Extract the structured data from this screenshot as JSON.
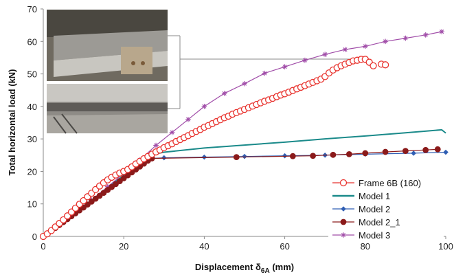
{
  "chart_data": {
    "type": "line",
    "xlabel": "Displacement δ",
    "xlabel_sub": "6A",
    "xlabel_unit": " (mm)",
    "ylabel": "Total horizontal load (kN)",
    "xlim": [
      0,
      100
    ],
    "ylim": [
      0,
      70
    ],
    "x_ticks": [
      "0",
      "20",
      "40",
      "60",
      "80",
      "100"
    ],
    "y_ticks": [
      "0",
      "10",
      "20",
      "30",
      "40",
      "50",
      "60",
      "70"
    ],
    "grid": false,
    "legend_position": "right",
    "inset": "photo",
    "series": [
      {
        "name": "Frame 6B (160)",
        "color": "#e8322d",
        "marker": "open-circle",
        "points": [
          [
            0,
            0
          ],
          [
            1,
            0.8
          ],
          [
            2,
            1.8
          ],
          [
            3,
            2.9
          ],
          [
            4,
            4
          ],
          [
            5,
            5.1
          ],
          [
            6,
            6.3
          ],
          [
            7,
            7.5
          ],
          [
            8,
            8.7
          ],
          [
            9,
            9.9
          ],
          [
            10,
            11
          ],
          [
            11,
            12.2
          ],
          [
            12,
            13.3
          ],
          [
            13,
            14.4
          ],
          [
            14,
            15.5
          ],
          [
            15,
            16.5
          ],
          [
            16,
            17.4
          ],
          [
            17,
            18.2
          ],
          [
            18,
            18.9
          ],
          [
            19,
            19.5
          ],
          [
            20,
            20
          ],
          [
            21,
            20.6
          ],
          [
            22,
            21.4
          ],
          [
            23,
            22.3
          ],
          [
            24,
            23.1
          ],
          [
            25,
            23.9
          ],
          [
            26,
            24.6
          ],
          [
            27,
            25.3
          ],
          [
            28,
            26
          ],
          [
            29,
            26.6
          ],
          [
            30,
            27.3
          ],
          [
            31,
            27.9
          ],
          [
            32,
            28.5
          ],
          [
            33,
            29.2
          ],
          [
            34,
            29.8
          ],
          [
            35,
            30.4
          ],
          [
            36,
            31
          ],
          [
            37,
            31.7
          ],
          [
            38,
            32.3
          ],
          [
            39,
            32.9
          ],
          [
            40,
            33.6
          ],
          [
            41,
            34.1
          ],
          [
            42,
            34.7
          ],
          [
            43,
            35.3
          ],
          [
            44,
            35.9
          ],
          [
            45,
            36.5
          ],
          [
            46,
            37
          ],
          [
            47,
            37.6
          ],
          [
            48,
            38.1
          ],
          [
            49,
            38.6
          ],
          [
            50,
            39.1
          ],
          [
            51,
            39.6
          ],
          [
            52,
            40.1
          ],
          [
            53,
            40.6
          ],
          [
            54,
            41.1
          ],
          [
            55,
            41.6
          ],
          [
            56,
            42
          ],
          [
            57,
            42.5
          ],
          [
            58,
            43
          ],
          [
            59,
            43.5
          ],
          [
            60,
            43.9
          ],
          [
            61,
            44.4
          ],
          [
            62,
            44.9
          ],
          [
            63,
            45.4
          ],
          [
            64,
            45.9
          ],
          [
            65,
            46.4
          ],
          [
            66,
            46.9
          ],
          [
            67,
            47.4
          ],
          [
            68,
            47.9
          ],
          [
            69,
            48.4
          ],
          [
            70,
            49.2
          ],
          [
            71,
            50.3
          ],
          [
            72,
            51.2
          ],
          [
            73,
            51.9
          ],
          [
            74,
            52.5
          ],
          [
            75,
            53
          ],
          [
            76,
            53.5
          ],
          [
            77,
            54
          ],
          [
            78,
            54.2
          ],
          [
            79,
            54.5
          ],
          [
            80,
            54.5
          ],
          [
            81,
            53.6
          ],
          [
            82,
            52.5
          ],
          [
            84,
            53
          ],
          [
            85,
            52.8
          ]
        ]
      },
      {
        "name": "Model 1",
        "color": "#1a8a8a",
        "marker": "none",
        "points": [
          [
            0,
            0
          ],
          [
            10,
            9.2
          ],
          [
            20,
            18.8
          ],
          [
            25,
            23.5
          ],
          [
            27,
            25.2
          ],
          [
            30,
            25.9
          ],
          [
            40,
            27.2
          ],
          [
            50,
            28.1
          ],
          [
            60,
            29
          ],
          [
            70,
            30
          ],
          [
            80,
            30.9
          ],
          [
            90,
            31.9
          ],
          [
            99,
            32.8
          ],
          [
            100,
            31.8
          ]
        ]
      },
      {
        "name": "Model 2",
        "color": "#2f5eb3",
        "marker": "diamond",
        "points": [
          [
            0,
            0
          ],
          [
            5,
            4.5
          ],
          [
            10,
            9
          ],
          [
            15,
            13.6
          ],
          [
            20,
            18.2
          ],
          [
            22,
            20
          ],
          [
            24,
            21.7
          ],
          [
            26,
            23.3
          ],
          [
            27,
            24
          ],
          [
            30,
            24.2
          ],
          [
            40,
            24.4
          ],
          [
            50,
            24.6
          ],
          [
            60,
            24.8
          ],
          [
            70,
            25
          ],
          [
            80,
            25.3
          ],
          [
            92,
            25.6
          ],
          [
            100,
            25.9
          ]
        ]
      },
      {
        "name": "Model 2_1",
        "color": "#8b1a1a",
        "marker": "filled-circle",
        "points": [
          [
            0,
            0
          ],
          [
            1,
            0.8
          ],
          [
            2,
            1.7
          ],
          [
            3,
            2.6
          ],
          [
            4,
            3.5
          ],
          [
            5,
            4.4
          ],
          [
            6,
            5.3
          ],
          [
            7,
            6.2
          ],
          [
            8,
            7.1
          ],
          [
            9,
            8
          ],
          [
            10,
            8.9
          ],
          [
            11,
            9.8
          ],
          [
            12,
            10.7
          ],
          [
            13,
            11.6
          ],
          [
            14,
            12.5
          ],
          [
            15,
            13.4
          ],
          [
            16,
            14.3
          ],
          [
            17,
            15.2
          ],
          [
            18,
            16.1
          ],
          [
            19,
            17
          ],
          [
            20,
            17.9
          ],
          [
            21,
            18.8
          ],
          [
            22,
            19.7
          ],
          [
            23,
            20.6
          ],
          [
            24,
            21.5
          ],
          [
            25,
            22.4
          ],
          [
            26,
            23.3
          ],
          [
            27,
            24
          ],
          [
            48,
            24.4
          ],
          [
            62,
            24.7
          ],
          [
            67,
            24.8
          ],
          [
            72,
            25.1
          ],
          [
            76,
            25.3
          ],
          [
            80,
            25.6
          ],
          [
            85,
            26
          ],
          [
            90,
            26.3
          ],
          [
            95,
            26.6
          ],
          [
            98,
            26.8
          ]
        ]
      },
      {
        "name": "Model 3",
        "color": "#a04ca8",
        "marker": "star",
        "points": [
          [
            0,
            0
          ],
          [
            4,
            3.6
          ],
          [
            8,
            7.3
          ],
          [
            12,
            11.2
          ],
          [
            16,
            15.3
          ],
          [
            20,
            19.4
          ],
          [
            24,
            23.5
          ],
          [
            28,
            28
          ],
          [
            32,
            32
          ],
          [
            36,
            36
          ],
          [
            40,
            40
          ],
          [
            45,
            44
          ],
          [
            50,
            47
          ],
          [
            55,
            50.2
          ],
          [
            60,
            52.2
          ],
          [
            65,
            54.2
          ],
          [
            70,
            56
          ],
          [
            75,
            57.5
          ],
          [
            80,
            58.5
          ],
          [
            85,
            60
          ],
          [
            90,
            61
          ],
          [
            95,
            62
          ],
          [
            99,
            63
          ]
        ]
      }
    ]
  }
}
